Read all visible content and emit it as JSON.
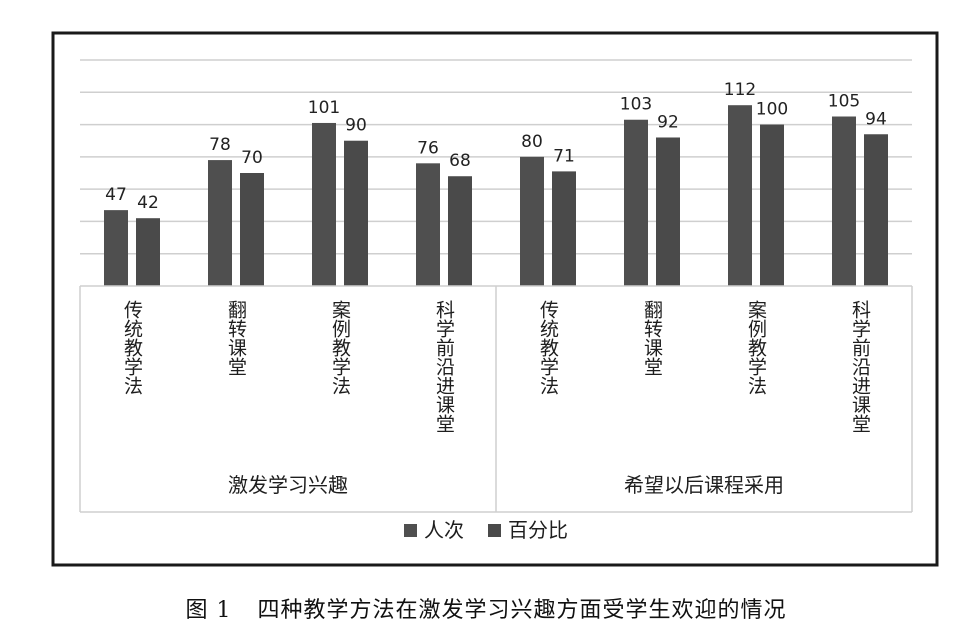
{
  "chart_data": {
    "type": "bar",
    "groups": [
      {
        "label": "激发学习兴趣",
        "categories": [
          "传统教学法",
          "翻转课堂",
          "案例教学法",
          "科学前沿进课堂"
        ]
      },
      {
        "label": "希望以后课程采用",
        "categories": [
          "传统教学法",
          "翻转课堂",
          "案例教学法",
          "科学前沿进课堂"
        ]
      }
    ],
    "series": [
      {
        "name": "人次",
        "values": [
          47,
          78,
          101,
          76,
          80,
          103,
          112,
          105
        ]
      },
      {
        "name": "百分比",
        "values": [
          42,
          70,
          90,
          68,
          71,
          92,
          100,
          94
        ]
      }
    ],
    "ylim": [
      0,
      140
    ],
    "grid": true,
    "legend_position": "bottom",
    "colors": {
      "series1": "#4f4f4f",
      "series2": "#4a4a4a",
      "grid": "#cfcfcf",
      "frame": "#1a1a1a"
    }
  },
  "caption": {
    "number": "图 1",
    "text": "四种教学方法在激发学习兴趣方面受学生欢迎的情况"
  }
}
